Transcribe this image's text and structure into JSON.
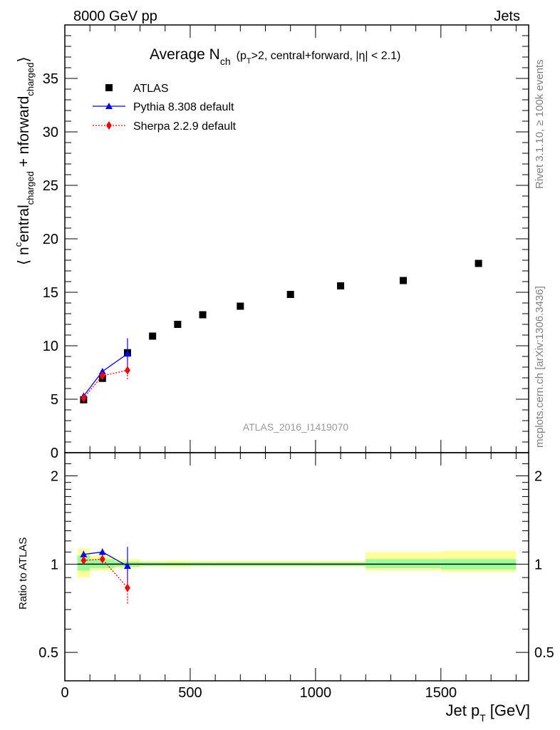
{
  "header": {
    "energy_label": "8000 GeV pp",
    "category_label": "Jets",
    "right_side_label_1": "Rivet 3.1.10, ≥ 100k events",
    "right_side_label_2": "mcplots.cern.ch [arXiv:1306.3436]",
    "analysis_id": "ATLAS_2016_I1419070"
  },
  "chart_data": [
    {
      "type": "scatter",
      "panel": "main",
      "title_main": "Average N",
      "title_sub": "ch",
      "title_suffix": "(p",
      "title_suffix_sub": "T",
      "title_tail": ">2, central+forward, |η| < 2.1)",
      "ylabel_parts": [
        "⟨ n",
        "c",
        "entral",
        "charged",
        " + n",
        "forward",
        "charged",
        "⟩"
      ],
      "xlabel": "Jet p",
      "xlabel_sub": "T",
      "xlabel_unit": "[GeV]",
      "xlim": [
        0,
        1850
      ],
      "ylim": [
        0,
        40
      ],
      "y_ticks": [
        0,
        5,
        10,
        15,
        20,
        25,
        30,
        35
      ],
      "legend_position": "top-left",
      "series": [
        {
          "name": "ATLAS",
          "color": "#000000",
          "marker": "square",
          "x": [
            75,
            150,
            250,
            350,
            450,
            550,
            700,
            900,
            1100,
            1350,
            1650
          ],
          "y": [
            4.95,
            6.95,
            9.35,
            10.9,
            12.0,
            12.9,
            13.7,
            14.8,
            15.6,
            16.1,
            17.7
          ]
        },
        {
          "name": "Pythia 8.308 default",
          "color": "#0000ff",
          "marker": "triangle",
          "line": "solid",
          "x": [
            75,
            150,
            250
          ],
          "y": [
            5.3,
            7.6,
            9.25
          ],
          "err": [
            0.15,
            0.2,
            1.45
          ]
        },
        {
          "name": "Sherpa 2.2.9 default",
          "color": "#ff0000",
          "marker": "diamond",
          "line": "dotted",
          "x": [
            75,
            150,
            250
          ],
          "y": [
            5.1,
            7.2,
            7.7
          ],
          "err": [
            0.1,
            0.2,
            0.9
          ]
        }
      ]
    },
    {
      "type": "scatter",
      "panel": "ratio",
      "ylabel": "Ratio to ATLAS",
      "xlim": [
        0,
        1850
      ],
      "ylim": [
        0.4,
        2.4
      ],
      "y_scale": "log",
      "y_ticks": [
        0.5,
        1,
        2
      ],
      "x_ticks": [
        0,
        500,
        1000,
        1500
      ],
      "reference_line": 1,
      "bands": [
        {
          "x0": 50,
          "x1": 100,
          "inner": [
            0.95,
            1.07
          ],
          "outer": [
            0.9,
            1.13
          ]
        },
        {
          "x0": 100,
          "x1": 200,
          "inner": [
            0.97,
            1.04
          ],
          "outer": [
            0.95,
            1.07
          ]
        },
        {
          "x0": 200,
          "x1": 300,
          "inner": [
            0.98,
            1.02
          ],
          "outer": [
            0.97,
            1.04
          ]
        },
        {
          "x0": 300,
          "x1": 400,
          "inner": [
            0.985,
            1.015
          ],
          "outer": [
            0.98,
            1.025
          ]
        },
        {
          "x0": 400,
          "x1": 500,
          "inner": [
            0.985,
            1.015
          ],
          "outer": [
            0.975,
            1.03
          ]
        },
        {
          "x0": 500,
          "x1": 600,
          "inner": [
            0.985,
            1.015
          ],
          "outer": [
            0.98,
            1.025
          ]
        },
        {
          "x0": 600,
          "x1": 800,
          "inner": [
            0.985,
            1.015
          ],
          "outer": [
            0.98,
            1.025
          ]
        },
        {
          "x0": 800,
          "x1": 1000,
          "inner": [
            0.985,
            1.015
          ],
          "outer": [
            0.98,
            1.025
          ]
        },
        {
          "x0": 1000,
          "x1": 1200,
          "inner": [
            0.985,
            1.015
          ],
          "outer": [
            0.98,
            1.025
          ]
        },
        {
          "x0": 1200,
          "x1": 1500,
          "inner": [
            0.97,
            1.04
          ],
          "outer": [
            0.95,
            1.1
          ]
        },
        {
          "x0": 1500,
          "x1": 1800,
          "inner": [
            0.96,
            1.04
          ],
          "outer": [
            0.94,
            1.11
          ]
        }
      ],
      "series": [
        {
          "name": "Pythia 8.308 default",
          "color": "#0000ff",
          "marker": "triangle",
          "line": "solid",
          "x": [
            75,
            150,
            250
          ],
          "y": [
            1.08,
            1.1,
            0.985
          ],
          "err": [
            0.03,
            0.03,
            0.16
          ]
        },
        {
          "name": "Sherpa 2.2.9 default",
          "color": "#ff0000",
          "marker": "diamond",
          "line": "dotted",
          "x": [
            75,
            150,
            250
          ],
          "y": [
            1.03,
            1.04,
            0.83
          ],
          "err": [
            0.02,
            0.025,
            0.1
          ]
        }
      ]
    }
  ]
}
